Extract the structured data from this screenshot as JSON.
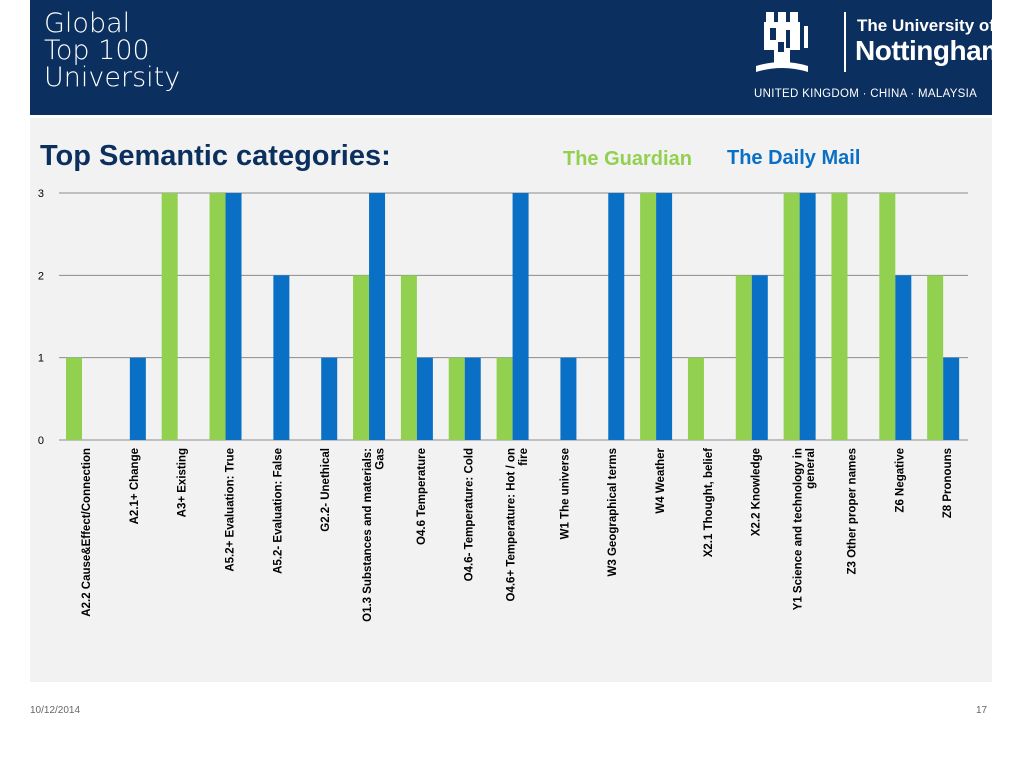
{
  "header": {
    "tagline": [
      "Global",
      "Top 100",
      "University"
    ],
    "university_prefix": "The University of",
    "university_name": "Nottingham",
    "countries": "UNITED KINGDOM · CHINA · MALAYSIA",
    "background_color": "#0b2f5e",
    "logo_icon": "castle-crest-icon"
  },
  "slide": {
    "title": "Top Semantic categories:",
    "legend_guardian": "The Guardian",
    "legend_dailymail": "The Daily Mail"
  },
  "colors": {
    "guardian": "#92d050",
    "dailymail": "#0a70c5",
    "panel": "#f2f2f2"
  },
  "chart_data": {
    "type": "bar",
    "title": "",
    "xlabel": "",
    "ylabel": "",
    "ylim": [
      0,
      3
    ],
    "yticks": [
      0,
      1,
      2,
      3
    ],
    "grid": true,
    "categories": [
      "A2.2 Cause&Effect/Connection",
      "A2.1+ Change",
      "A3+ Existing",
      "A5.2+ Evaluation: True",
      "A5.2- Evaluation: False",
      "G2.2- Unethical",
      "O1.3 Substances and materials: Gas",
      "O4.6 Temperature",
      "O4.6- Temperature: Cold",
      "O4.6+ Temperature: Hot / on fire",
      "W1 The universe",
      "W3 Geographical terms",
      "W4 Weather",
      "X2.1 Thought, belief",
      "X2.2 Knowledge",
      "Y1 Science and technology in general",
      "Z3 Other proper names",
      "Z6 Negative",
      "Z8 Pronouns"
    ],
    "series": [
      {
        "name": "The Guardian",
        "values": [
          1,
          0,
          3,
          3,
          0,
          0,
          2,
          2,
          1,
          1,
          0,
          0,
          3,
          1,
          2,
          3,
          3,
          3,
          2
        ]
      },
      {
        "name": "The Daily Mail",
        "values": [
          0,
          1,
          0,
          3,
          2,
          1,
          3,
          1,
          1,
          3,
          1,
          3,
          3,
          0,
          2,
          3,
          0,
          2,
          1
        ]
      }
    ]
  },
  "footer": {
    "date": "10/12/2014",
    "page": "17"
  }
}
